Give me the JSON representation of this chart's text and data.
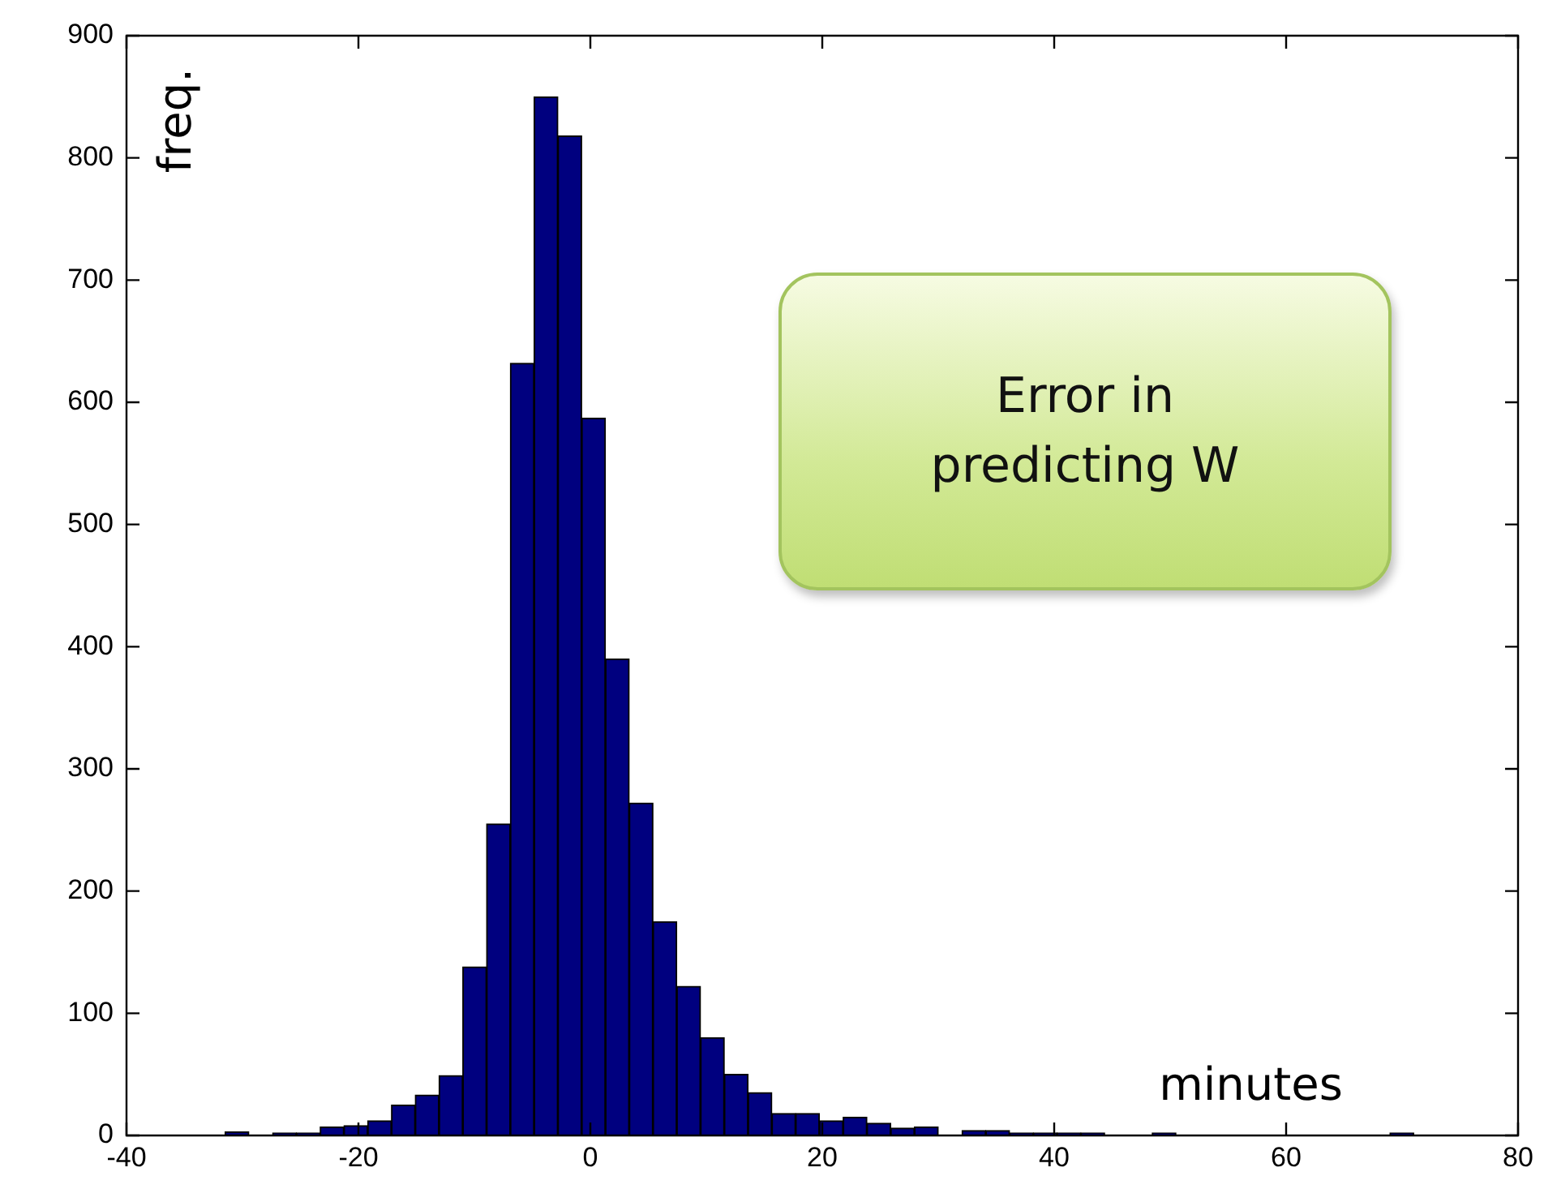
{
  "chart_data": {
    "type": "histogram",
    "bins": [
      -31.5,
      -29.45,
      -27.4,
      -25.35,
      -23.3,
      -21.25,
      -19.2,
      -17.15,
      -15.1,
      -13.05,
      -11,
      -8.95,
      -6.9,
      -4.85,
      -2.8,
      -0.75,
      1.3,
      3.35,
      5.4,
      7.45,
      9.5,
      11.55,
      13.6,
      15.65,
      17.7,
      19.75,
      21.8,
      23.85,
      25.9,
      27.95,
      30,
      32.05,
      34.1,
      36.15,
      38.2,
      40.25,
      42.3,
      44.35,
      46.4,
      48.45,
      50.5,
      52.55,
      54.6,
      56.65,
      58.7,
      60.75,
      62.8,
      64.85,
      66.9,
      68.95,
      71
    ],
    "values": [
      3,
      0,
      2,
      2,
      7,
      8,
      12,
      25,
      33,
      49,
      138,
      255,
      632,
      850,
      818,
      587,
      390,
      272,
      175,
      122,
      80,
      50,
      35,
      18,
      18,
      12,
      15,
      10,
      6,
      7,
      0,
      4,
      4,
      2,
      2,
      2,
      2,
      0,
      0,
      2,
      0,
      0,
      0,
      0,
      0,
      0,
      0,
      0,
      0,
      2
    ],
    "color": "#00007f",
    "xlabel": "minutes",
    "ylabel": "freq.",
    "annotations": [
      "Error in predicting W"
    ],
    "xlim": [
      -40,
      80
    ],
    "xticks": [
      -40,
      -20,
      0,
      20,
      40,
      60,
      80
    ],
    "ylim": [
      0,
      900
    ],
    "yticks": [
      0,
      100,
      200,
      300,
      400,
      500,
      600,
      700,
      800,
      900
    ],
    "grid": false,
    "legend": false
  }
}
